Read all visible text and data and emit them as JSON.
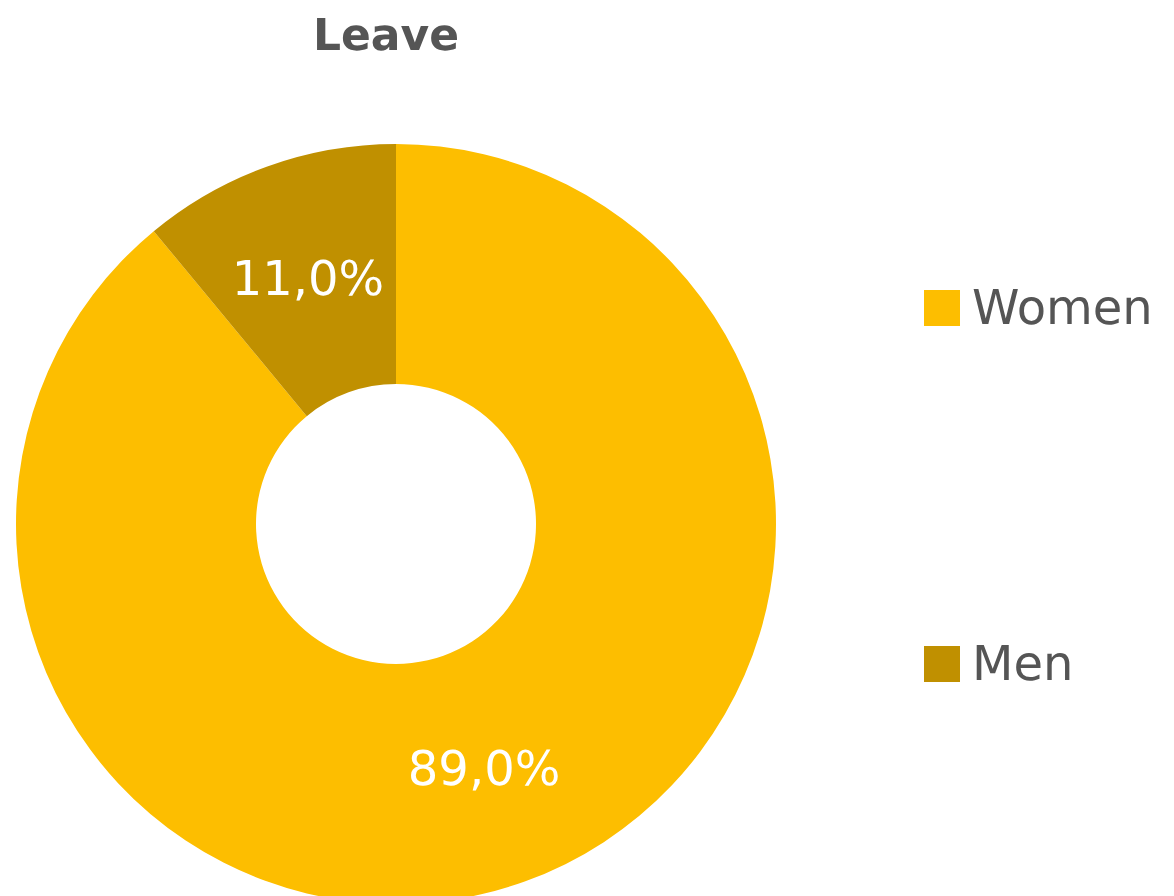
{
  "chart_data": {
    "type": "donut",
    "title": "Leave",
    "categories": [
      "Women",
      "Men"
    ],
    "values": [
      89.0,
      11.0
    ],
    "colors": [
      "#fdbe00",
      "#c09000"
    ],
    "value_labels": [
      "89,0%",
      "11,0%"
    ],
    "legend": "right"
  }
}
